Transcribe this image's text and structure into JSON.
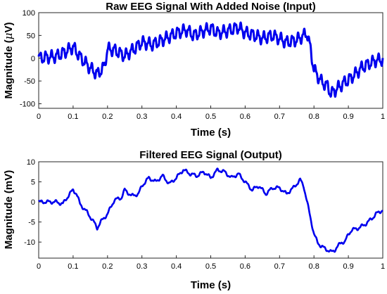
{
  "chart_data": [
    {
      "type": "line",
      "title": "Raw EEG Signal With Added Noise (Input)",
      "xlabel": "Time (s)",
      "ylabel_parts": {
        "pre": "Magnitude (",
        "mu": "μ",
        "post": "V)"
      },
      "xlim": [
        0,
        1
      ],
      "ylim": [
        -110,
        100
      ],
      "xticks": [
        0,
        0.1,
        0.2,
        0.3,
        0.4,
        0.5,
        0.6,
        0.7,
        0.8,
        0.9,
        1
      ],
      "xtick_labels": [
        "0",
        "0.1",
        "0.2",
        "0.3",
        "0.4",
        "0.5",
        "0.6",
        "0.7",
        "0.8",
        "0.9",
        "1"
      ],
      "yticks": [
        -100,
        -50,
        0,
        50,
        100
      ],
      "ytick_labels": [
        "-100",
        "-50",
        "0",
        "50",
        "100"
      ],
      "grid": true,
      "color": "#0000ee",
      "noise": {
        "amp": 11,
        "freq": 60
      },
      "series": [
        {
          "x": [
            0,
            0.02,
            0.05,
            0.08,
            0.1,
            0.12,
            0.15,
            0.17,
            0.19,
            0.2,
            0.22,
            0.25,
            0.28,
            0.3,
            0.33,
            0.36,
            0.4,
            0.43,
            0.45,
            0.48,
            0.5,
            0.52,
            0.55,
            0.58,
            0.6,
            0.62,
            0.65,
            0.68,
            0.7,
            0.72,
            0.75,
            0.77,
            0.78,
            0.79,
            0.8,
            0.82,
            0.84,
            0.85,
            0.87,
            0.89,
            0.9,
            0.92,
            0.94,
            0.96,
            0.98,
            1
          ],
          "y": [
            0,
            2,
            4,
            15,
            25,
            3,
            -22,
            -35,
            -20,
            20,
            18,
            5,
            22,
            35,
            30,
            40,
            55,
            62,
            50,
            60,
            66,
            55,
            60,
            68,
            56,
            52,
            44,
            50,
            43,
            35,
            40,
            50,
            55,
            20,
            -25,
            -50,
            -62,
            -78,
            -65,
            -52,
            -48,
            -35,
            -20,
            -12,
            -5,
            -3
          ]
        }
      ]
    },
    {
      "type": "line",
      "title": "Filtered EEG Signal (Output)",
      "xlabel": "Time (s)",
      "ylabel": "Magnitude (mV)",
      "xlim": [
        0,
        1
      ],
      "ylim": [
        -14,
        10
      ],
      "xticks": [
        0,
        0.1,
        0.2,
        0.3,
        0.4,
        0.5,
        0.6,
        0.7,
        0.8,
        0.9,
        1
      ],
      "xtick_labels": [
        "0",
        "0.1",
        "0.2",
        "0.3",
        "0.4",
        "0.5",
        "0.6",
        "0.7",
        "0.8",
        "0.9",
        "1"
      ],
      "yticks": [
        -10,
        -5,
        0,
        5,
        10
      ],
      "ytick_labels": [
        "-10",
        "-5",
        "0",
        "5",
        "10"
      ],
      "grid": true,
      "color": "#0000ee",
      "noise": {
        "amp": 0.35,
        "freq": 45
      },
      "series": [
        {
          "x": [
            0,
            0.03,
            0.05,
            0.07,
            0.09,
            0.1,
            0.11,
            0.12,
            0.14,
            0.16,
            0.17,
            0.18,
            0.2,
            0.22,
            0.24,
            0.25,
            0.27,
            0.29,
            0.3,
            0.32,
            0.34,
            0.36,
            0.38,
            0.4,
            0.42,
            0.44,
            0.46,
            0.48,
            0.5,
            0.52,
            0.54,
            0.56,
            0.58,
            0.6,
            0.62,
            0.64,
            0.66,
            0.68,
            0.7,
            0.72,
            0.74,
            0.76,
            0.77,
            0.78,
            0.79,
            0.8,
            0.81,
            0.82,
            0.83,
            0.85,
            0.86,
            0.87,
            0.88,
            0.89,
            0.9,
            0.91,
            0.93,
            0.95,
            0.97,
            0.98,
            0.99,
            1
          ],
          "y": [
            0,
            0,
            0,
            -0.5,
            2,
            3,
            2,
            -0.5,
            -2.5,
            -5,
            -6.5,
            -5,
            -3,
            0.5,
            1,
            3,
            1.5,
            2,
            4,
            6,
            5,
            6.5,
            4.5,
            6,
            8,
            7,
            6.5,
            7.5,
            6,
            8,
            7.5,
            6,
            7,
            5,
            3,
            4,
            2,
            3.5,
            3.5,
            2,
            3.5,
            5.5,
            4,
            0,
            -4,
            -8,
            -10,
            -11,
            -11.5,
            -12.5,
            -12,
            -11,
            -10,
            -10,
            -8,
            -7,
            -6.5,
            -5.5,
            -4,
            -3,
            -2.5,
            -2
          ]
        }
      ]
    }
  ]
}
